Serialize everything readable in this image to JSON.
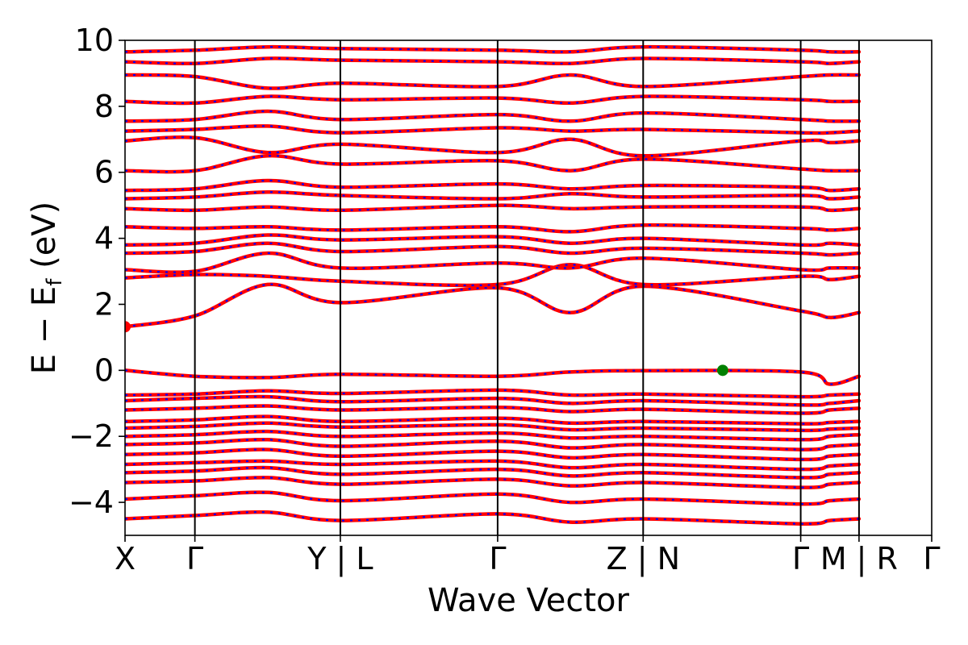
{
  "chart_data": {
    "type": "line",
    "title": "",
    "xlabel": "Wave Vector",
    "ylabel": "E − E",
    "ylabel_sub": "f",
    "ylabel_unit": " (eV)",
    "ylim": [
      -5,
      10
    ],
    "yticks": [
      -4,
      -2,
      0,
      2,
      4,
      6,
      8,
      10
    ],
    "ytick_labels": [
      "−4",
      "−2",
      "0",
      "2",
      "4",
      "6",
      "8",
      "10"
    ],
    "grid": false,
    "legend": "none",
    "high_symmetry_points": [
      {
        "label": "X",
        "x": 0.0
      },
      {
        "label": "Γ",
        "x": 0.0866
      },
      {
        "label": "Y | L",
        "x": 0.2669
      },
      {
        "label": "Γ",
        "x": 0.4619
      },
      {
        "label": "Z | N",
        "x": 0.6423
      },
      {
        "label": "Γ",
        "x": 0.8376
      },
      {
        "label": "M | R",
        "x": 0.9099
      },
      {
        "label": "Γ",
        "x": 1.0
      }
    ],
    "colors": {
      "spin_up": "#ff0000",
      "spin_down": "#0000ff",
      "cbm": "#ff0000",
      "vbm": "#008000"
    },
    "series": [
      {
        "label": "CBM",
        "x": 0.0,
        "y": 1.32
      },
      {
        "label": "VBM",
        "x": 0.7409,
        "y": 0.0
      }
    ],
    "bands": [
      [
        0.0,
        -0.18,
        -0.22,
        -0.12,
        -0.18,
        -0.05,
        -0.01,
        -0.05,
        -0.42,
        -0.18
      ],
      [
        -0.75,
        -0.72,
        -0.62,
        -0.7,
        -0.6,
        -0.75,
        -0.72,
        -0.8,
        -0.75,
        -0.72
      ],
      [
        -0.92,
        -0.85,
        -0.8,
        -0.95,
        -0.85,
        -1.0,
        -0.92,
        -1.05,
        -1.0,
        -0.92
      ],
      [
        -1.2,
        -1.15,
        -1.08,
        -1.2,
        -1.12,
        -1.25,
        -1.18,
        -1.3,
        -1.2,
        -1.15
      ],
      [
        -1.55,
        -1.5,
        -1.4,
        -1.55,
        -1.45,
        -1.6,
        -1.55,
        -1.62,
        -1.58,
        -1.55
      ],
      [
        -1.75,
        -1.7,
        -1.6,
        -1.72,
        -1.65,
        -1.8,
        -1.75,
        -1.82,
        -1.78,
        -1.75
      ],
      [
        -2.0,
        -1.95,
        -1.85,
        -2.0,
        -1.9,
        -2.05,
        -2.0,
        -2.1,
        -2.0,
        -1.95
      ],
      [
        -2.25,
        -2.2,
        -2.1,
        -2.3,
        -2.15,
        -2.35,
        -2.25,
        -2.4,
        -2.3,
        -2.25
      ],
      [
        -2.55,
        -2.5,
        -2.4,
        -2.6,
        -2.45,
        -2.65,
        -2.55,
        -2.7,
        -2.6,
        -2.55
      ],
      [
        -2.85,
        -2.8,
        -2.75,
        -2.85,
        -2.75,
        -2.95,
        -2.85,
        -3.0,
        -2.9,
        -2.85
      ],
      [
        -3.1,
        -3.05,
        -2.95,
        -3.15,
        -3.0,
        -3.2,
        -3.1,
        -3.25,
        -3.15,
        -3.1
      ],
      [
        -3.4,
        -3.35,
        -3.25,
        -3.45,
        -3.3,
        -3.5,
        -3.4,
        -3.55,
        -3.45,
        -3.4
      ],
      [
        -3.9,
        -3.8,
        -3.7,
        -3.95,
        -3.75,
        -4.0,
        -3.9,
        -4.05,
        -3.95,
        -3.9
      ],
      [
        -4.5,
        -4.4,
        -4.3,
        -4.55,
        -4.35,
        -4.6,
        -4.5,
        -4.65,
        -4.55,
        -4.5
      ],
      [
        1.32,
        1.65,
        2.6,
        2.05,
        2.5,
        1.75,
        2.55,
        1.8,
        1.6,
        1.75
      ],
      [
        2.8,
        2.9,
        2.85,
        2.7,
        2.6,
        3.2,
        2.6,
        2.85,
        2.75,
        2.85
      ],
      [
        3.05,
        3.0,
        3.55,
        3.1,
        3.25,
        3.1,
        3.4,
        3.05,
        3.1,
        3.1
      ],
      [
        3.55,
        3.6,
        3.85,
        3.6,
        3.75,
        3.55,
        3.7,
        3.55,
        3.5,
        3.55
      ],
      [
        3.8,
        3.85,
        4.1,
        3.95,
        4.05,
        3.85,
        4.0,
        3.8,
        3.85,
        3.8
      ],
      [
        4.35,
        4.3,
        4.35,
        4.25,
        4.35,
        4.2,
        4.4,
        4.3,
        4.25,
        4.3
      ],
      [
        4.9,
        4.85,
        4.95,
        4.85,
        5.0,
        4.9,
        4.95,
        4.95,
        4.85,
        4.9
      ],
      [
        5.2,
        5.25,
        5.4,
        5.3,
        5.2,
        5.35,
        5.25,
        5.3,
        5.2,
        5.25
      ],
      [
        5.45,
        5.5,
        5.75,
        5.55,
        5.65,
        5.5,
        5.6,
        5.55,
        5.45,
        5.5
      ],
      [
        6.05,
        6.05,
        6.5,
        6.25,
        6.35,
        6.05,
        6.4,
        6.1,
        6.05,
        6.05
      ],
      [
        6.95,
        7.05,
        6.6,
        6.85,
        6.6,
        7.0,
        6.5,
        6.95,
        6.9,
        6.95
      ],
      [
        7.25,
        7.3,
        7.4,
        7.2,
        7.35,
        7.25,
        7.3,
        7.2,
        7.2,
        7.25
      ],
      [
        7.55,
        7.6,
        7.85,
        7.6,
        7.75,
        7.55,
        7.8,
        7.6,
        7.55,
        7.55
      ],
      [
        8.15,
        8.1,
        8.3,
        8.2,
        8.25,
        8.1,
        8.3,
        8.2,
        8.15,
        8.15
      ],
      [
        8.95,
        8.9,
        8.55,
        8.7,
        8.6,
        8.95,
        8.6,
        8.9,
        8.95,
        8.95
      ],
      [
        9.35,
        9.3,
        9.45,
        9.4,
        9.35,
        9.3,
        9.45,
        9.35,
        9.3,
        9.35
      ],
      [
        9.65,
        9.7,
        9.8,
        9.75,
        9.7,
        9.65,
        9.8,
        9.7,
        9.65,
        9.65
      ]
    ]
  }
}
